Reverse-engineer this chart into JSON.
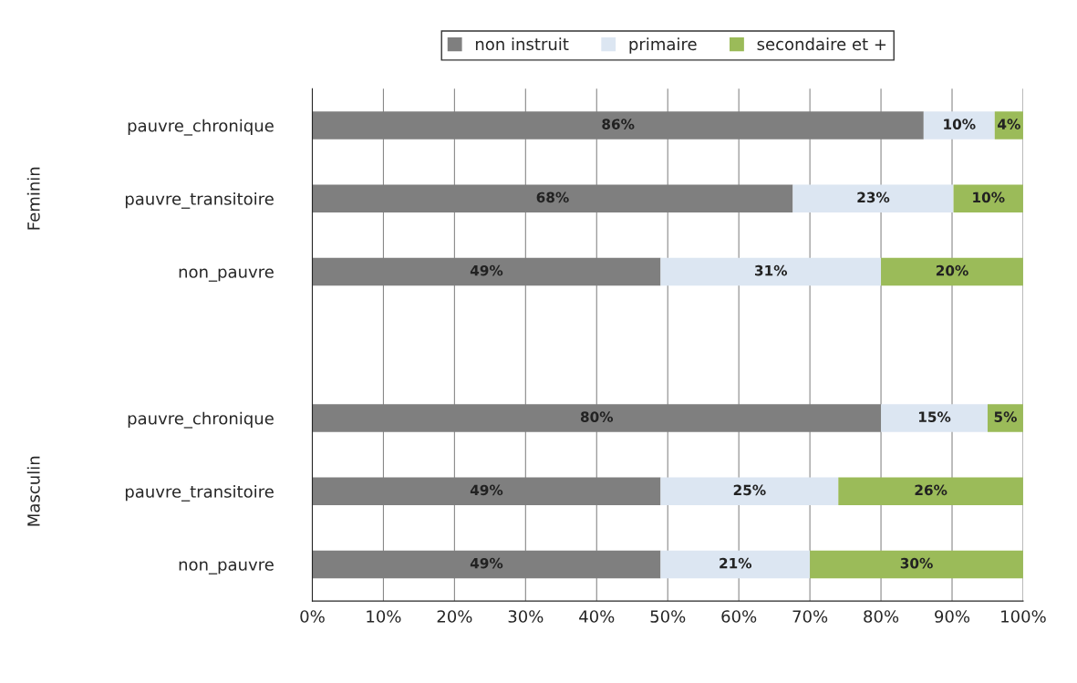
{
  "chart_data": {
    "type": "bar",
    "orientation": "horizontal",
    "stacked": true,
    "categories": [
      "pauvre_chronique",
      "pauvre_transitoire",
      "non_pauvre",
      null,
      "pauvre_chronique",
      "pauvre_transitoire",
      "non_pauvre"
    ],
    "series": [
      {
        "name": "non instruit",
        "color": "#7f7f7f",
        "values": [
          86,
          67.6,
          49,
          null,
          80,
          49,
          49
        ],
        "value_labels": [
          "86%",
          "68%",
          "49%",
          null,
          "80%",
          "49%",
          "49%"
        ]
      },
      {
        "name": "primaire",
        "color": "#dce6f2",
        "values": [
          10,
          22.6,
          31,
          null,
          15,
          25,
          21
        ],
        "value_labels": [
          "10%",
          "23%",
          "31%",
          null,
          "15%",
          "25%",
          "21%"
        ]
      },
      {
        "name": "secondaire et +",
        "color": "#9bbb59",
        "values": [
          4,
          9.8,
          20,
          null,
          5,
          26,
          30
        ],
        "value_labels": [
          "4%",
          "10%",
          "20%",
          null,
          "5%",
          "26%",
          "30%"
        ]
      }
    ],
    "xlim": [
      0,
      100
    ],
    "xticks": [
      {
        "value": 0,
        "label": "0%"
      },
      {
        "value": 10,
        "label": "10%"
      },
      {
        "value": 20,
        "label": "20%"
      },
      {
        "value": 30,
        "label": "30%"
      },
      {
        "value": 40,
        "label": "40%"
      },
      {
        "value": 50,
        "label": "50%"
      },
      {
        "value": 60,
        "label": "60%"
      },
      {
        "value": 70,
        "label": "70%"
      },
      {
        "value": 80,
        "label": "80%"
      },
      {
        "value": 90,
        "label": "90%"
      },
      {
        "value": 100,
        "label": "100%"
      }
    ],
    "annotations": [
      "Feminin",
      "Masculin"
    ],
    "grid": "x",
    "legend": "top"
  }
}
